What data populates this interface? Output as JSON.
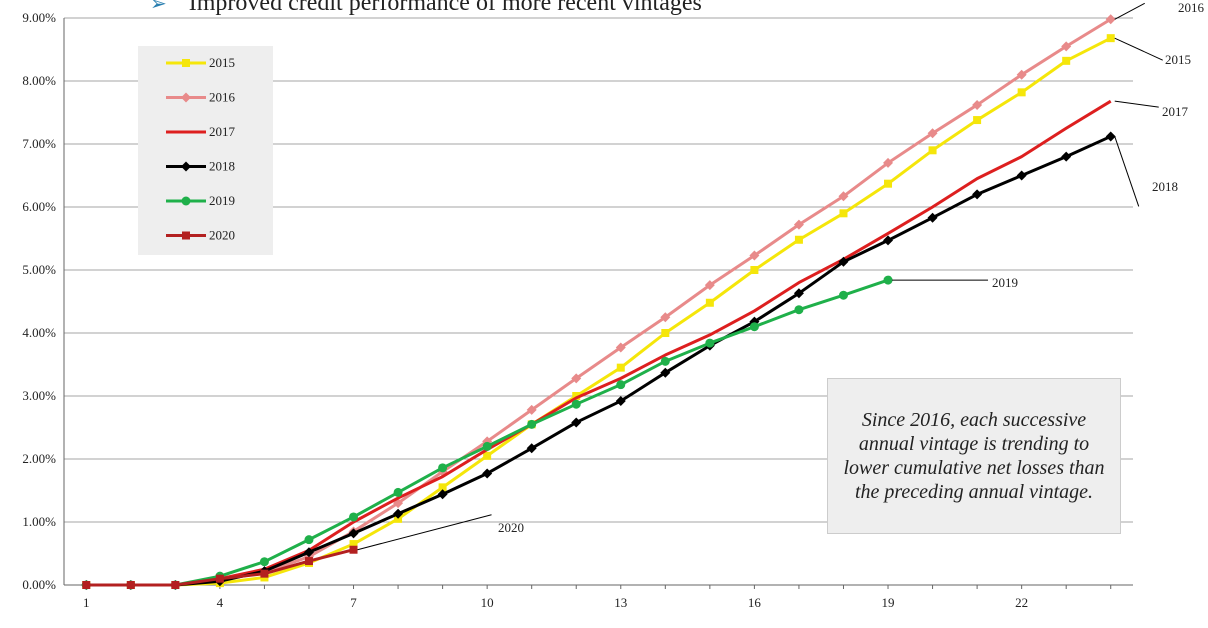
{
  "header": {
    "bullet": "➢",
    "text": "Improved credit performance of more recent vintages"
  },
  "note": "Since 2016, each successive annual vintage is trending to lower cumulative net losses than the preceding annual vintage.",
  "chart_data": {
    "type": "line",
    "title": "",
    "xlabel": "",
    "ylabel": "",
    "x_ticks": [
      1,
      4,
      7,
      10,
      13,
      16,
      19,
      22
    ],
    "xlim": [
      0.5,
      24.5
    ],
    "y_ticks": [
      "0.00%",
      "1.00%",
      "2.00%",
      "3.00%",
      "4.00%",
      "5.00%",
      "6.00%",
      "7.00%",
      "8.00%",
      "9.00%"
    ],
    "ylim": [
      0,
      9
    ],
    "grid": "horizontal",
    "legend_position": "top-left",
    "series": [
      {
        "name": "2015",
        "color": "#f5e60a",
        "marker": "square",
        "x": [
          1,
          2,
          3,
          4,
          5,
          6,
          7,
          8,
          9,
          10,
          11,
          12,
          13,
          14,
          15,
          16,
          17,
          18,
          19,
          20,
          21,
          22,
          23,
          24
        ],
        "values": [
          0.0,
          0.0,
          0.0,
          0.03,
          0.12,
          0.35,
          0.65,
          1.05,
          1.55,
          2.05,
          2.55,
          3.0,
          3.45,
          4.0,
          4.48,
          5.0,
          5.48,
          5.9,
          6.37,
          6.9,
          7.38,
          7.82,
          8.32,
          8.68
        ]
      },
      {
        "name": "2016",
        "color": "#e88a8a",
        "marker": "diamond",
        "x": [
          1,
          2,
          3,
          4,
          5,
          6,
          7,
          8,
          9,
          10,
          11,
          12,
          13,
          14,
          15,
          16,
          17,
          18,
          19,
          20,
          21,
          22,
          23,
          24
        ],
        "values": [
          0.0,
          0.0,
          0.0,
          0.08,
          0.2,
          0.45,
          0.85,
          1.3,
          1.8,
          2.28,
          2.78,
          3.28,
          3.77,
          4.25,
          4.76,
          5.23,
          5.72,
          6.17,
          6.7,
          7.17,
          7.62,
          8.1,
          8.55,
          8.98
        ]
      },
      {
        "name": "2017",
        "color": "#dd1f1f",
        "marker": "none",
        "x": [
          1,
          2,
          3,
          4,
          5,
          6,
          7,
          8,
          9,
          10,
          11,
          12,
          13,
          14,
          15,
          16,
          17,
          18,
          19,
          20,
          21,
          22,
          23,
          24
        ],
        "values": [
          0.0,
          0.0,
          0.0,
          0.1,
          0.25,
          0.55,
          1.0,
          1.38,
          1.72,
          2.15,
          2.55,
          2.97,
          3.28,
          3.65,
          3.97,
          4.35,
          4.8,
          5.17,
          5.58,
          6.0,
          6.45,
          6.8,
          7.25,
          7.68
        ]
      },
      {
        "name": "2018",
        "color": "#000000",
        "marker": "diamond",
        "x": [
          1,
          2,
          3,
          4,
          5,
          6,
          7,
          8,
          9,
          10,
          11,
          12,
          13,
          14,
          15,
          16,
          17,
          18,
          19,
          20,
          21,
          22,
          23,
          24
        ],
        "values": [
          0.0,
          0.0,
          0.0,
          0.06,
          0.22,
          0.52,
          0.82,
          1.13,
          1.44,
          1.77,
          2.17,
          2.58,
          2.92,
          3.37,
          3.8,
          4.18,
          4.63,
          5.13,
          5.47,
          5.83,
          6.2,
          6.5,
          6.8,
          7.12
        ]
      },
      {
        "name": "2019",
        "color": "#1fb04a",
        "marker": "circle",
        "x": [
          1,
          2,
          3,
          4,
          5,
          6,
          7,
          8,
          9,
          10,
          11,
          12,
          13,
          14,
          15,
          16,
          17,
          18,
          19
        ],
        "values": [
          0.0,
          0.0,
          0.0,
          0.14,
          0.37,
          0.72,
          1.08,
          1.47,
          1.86,
          2.2,
          2.55,
          2.87,
          3.18,
          3.55,
          3.84,
          4.1,
          4.37,
          4.6,
          4.84
        ]
      },
      {
        "name": "2020",
        "color": "#b32020",
        "marker": "square",
        "x": [
          1,
          2,
          3,
          4,
          5,
          6,
          7
        ],
        "values": [
          0.0,
          0.0,
          0.0,
          0.1,
          0.18,
          0.38,
          0.56
        ]
      }
    ],
    "callouts": [
      {
        "series": "2016",
        "label": "2016"
      },
      {
        "series": "2015",
        "label": "2015"
      },
      {
        "series": "2017",
        "label": "2017"
      },
      {
        "series": "2018",
        "label": "2018"
      },
      {
        "series": "2019",
        "label": "2019"
      },
      {
        "series": "2020",
        "label": "2020"
      }
    ]
  }
}
